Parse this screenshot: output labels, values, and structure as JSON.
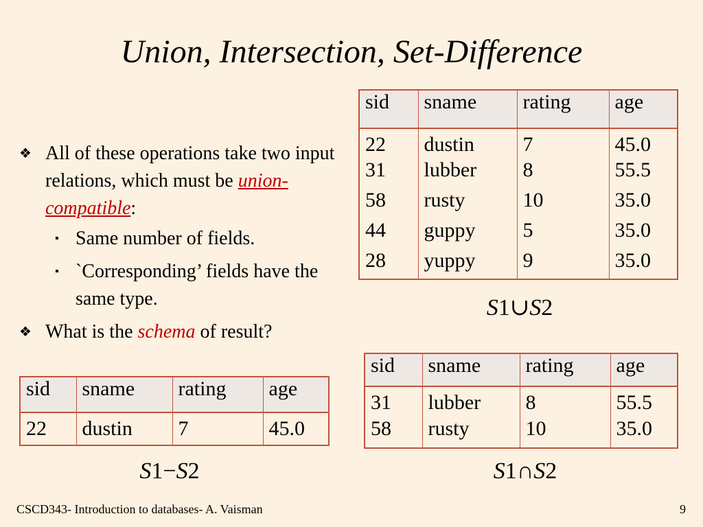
{
  "title": "Union, Intersection, Set-Difference",
  "bullets": {
    "b1_pre": "All of these operations take two input relations, which must be ",
    "b1_em": "union-compatible",
    "b1_post": ":",
    "sub1": "Same number of fields.",
    "sub2": "`Corresponding’ fields have the same type.",
    "b2_pre": "What is the ",
    "b2_em": "schema",
    "b2_post": " of result?"
  },
  "columns": [
    "sid",
    "sname",
    "rating",
    "age"
  ],
  "union_table": {
    "rows": [
      [
        "22",
        "dustin",
        "7",
        "45.0"
      ],
      [
        "31",
        "lubber",
        "8",
        "55.5"
      ],
      [
        "58",
        "rusty",
        "10",
        "35.0"
      ],
      [
        "44",
        "guppy",
        "5",
        "35.0"
      ],
      [
        "28",
        "yuppy",
        "9",
        "35.0"
      ]
    ],
    "caption_a": "S",
    "caption_1": "1",
    "caption_op": "∪",
    "caption_b": "S",
    "caption_2": "2"
  },
  "intersection_table": {
    "rows": [
      [
        "31",
        "lubber",
        "8",
        "55.5"
      ],
      [
        "58",
        "rusty",
        "10",
        "35.0"
      ]
    ],
    "caption_a": "S",
    "caption_1": "1",
    "caption_op": "∩",
    "caption_b": "S",
    "caption_2": "2"
  },
  "difference_table": {
    "rows": [
      [
        "22",
        "dustin",
        "7",
        "45.0"
      ]
    ],
    "caption_a": "S",
    "caption_1": "1",
    "caption_op": "−",
    "caption_b": "S",
    "caption_2": "2"
  },
  "footer": {
    "course": "CSCD343- Introduction to databases- A. Vaisman",
    "page": "9"
  }
}
